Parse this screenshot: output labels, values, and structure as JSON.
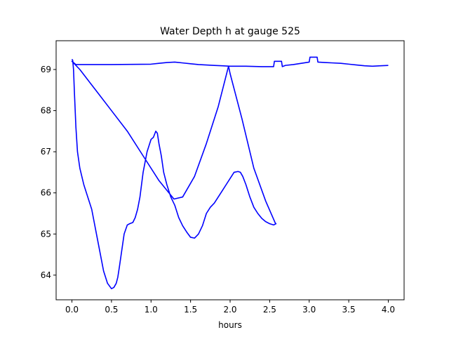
{
  "chart_data": {
    "type": "line",
    "title": "Water Depth h at gauge 525",
    "xlabel": "hours",
    "ylabel": "",
    "xlim": [
      -0.2,
      4.2
    ],
    "ylim": [
      63.4,
      69.7
    ],
    "xticks": [
      0.0,
      0.5,
      1.0,
      1.5,
      2.0,
      2.5,
      3.0,
      3.5,
      4.0
    ],
    "xtick_labels": [
      "0.0",
      "0.5",
      "1.0",
      "1.5",
      "2.0",
      "2.5",
      "3.0",
      "3.5",
      "4.0"
    ],
    "yticks": [
      64,
      65,
      66,
      67,
      68,
      69
    ],
    "ytick_labels": [
      "64",
      "65",
      "66",
      "67",
      "68",
      "69"
    ],
    "grid": false,
    "legend": "none",
    "series": [
      {
        "color": "#0000ff",
        "x": [
          0.0,
          0.01,
          0.02,
          0.03,
          0.05,
          0.07,
          0.1,
          0.15,
          0.2,
          0.25,
          0.3,
          0.35,
          0.4,
          0.45,
          0.5,
          0.53,
          0.56,
          0.58,
          0.6,
          0.63,
          0.66,
          0.7,
          0.73,
          0.77,
          0.8,
          0.83,
          0.86,
          0.9,
          0.95,
          1.0,
          1.03,
          1.06,
          1.08,
          1.1,
          1.13,
          1.16,
          1.2,
          1.25,
          1.3,
          1.35,
          1.4,
          1.45,
          1.5,
          1.55,
          1.6,
          1.65,
          1.7,
          1.75,
          1.8,
          1.85,
          1.9,
          1.95,
          2.0,
          2.05,
          2.1,
          2.13,
          2.16,
          2.2,
          2.25,
          2.3,
          2.35,
          2.4,
          2.45,
          2.5,
          2.55,
          2.58,
          2.57,
          2.45,
          2.3,
          2.15,
          2.0,
          1.98,
          1.85,
          1.7,
          1.55,
          1.4,
          1.29,
          1.1,
          0.9,
          0.7,
          0.5,
          0.3,
          0.1,
          0.0,
          0.05,
          0.5,
          1.0,
          1.1,
          1.2,
          1.3,
          1.4,
          1.5,
          1.6,
          1.7,
          1.8,
          1.9,
          2.0,
          2.2,
          2.4,
          2.55,
          2.56,
          2.65,
          2.66,
          2.7,
          2.8,
          2.9,
          3.0,
          3.01,
          3.1,
          3.11,
          3.2,
          3.3,
          3.4,
          3.5,
          3.6,
          3.7,
          3.8,
          3.9,
          4.0
        ],
        "y": [
          69.25,
          69.22,
          69.0,
          68.5,
          67.6,
          67.0,
          66.6,
          66.2,
          65.9,
          65.6,
          65.1,
          64.6,
          64.1,
          63.8,
          63.67,
          63.7,
          63.8,
          63.95,
          64.2,
          64.6,
          65.0,
          65.22,
          65.25,
          65.28,
          65.4,
          65.6,
          65.9,
          66.5,
          67.0,
          67.3,
          67.35,
          67.5,
          67.45,
          67.2,
          66.9,
          66.5,
          66.2,
          65.9,
          65.7,
          65.4,
          65.2,
          65.05,
          64.92,
          64.9,
          65.0,
          65.2,
          65.5,
          65.65,
          65.75,
          65.9,
          66.05,
          66.2,
          66.35,
          66.5,
          66.52,
          66.5,
          66.4,
          66.2,
          65.9,
          65.65,
          65.5,
          65.38,
          65.3,
          65.25,
          65.22,
          65.25,
          65.27,
          65.8,
          66.6,
          67.8,
          68.9,
          69.08,
          68.1,
          67.2,
          66.4,
          65.9,
          65.85,
          66.3,
          66.9,
          67.5,
          68.0,
          68.5,
          69.0,
          69.2,
          69.12,
          69.12,
          69.13,
          69.15,
          69.17,
          69.18,
          69.16,
          69.14,
          69.12,
          69.11,
          69.1,
          69.09,
          69.08,
          69.08,
          69.07,
          69.07,
          69.2,
          69.2,
          69.07,
          69.1,
          69.12,
          69.15,
          69.18,
          69.3,
          69.3,
          69.18,
          69.17,
          69.16,
          69.15,
          69.13,
          69.11,
          69.09,
          69.08,
          69.09,
          69.1
        ]
      }
    ]
  }
}
